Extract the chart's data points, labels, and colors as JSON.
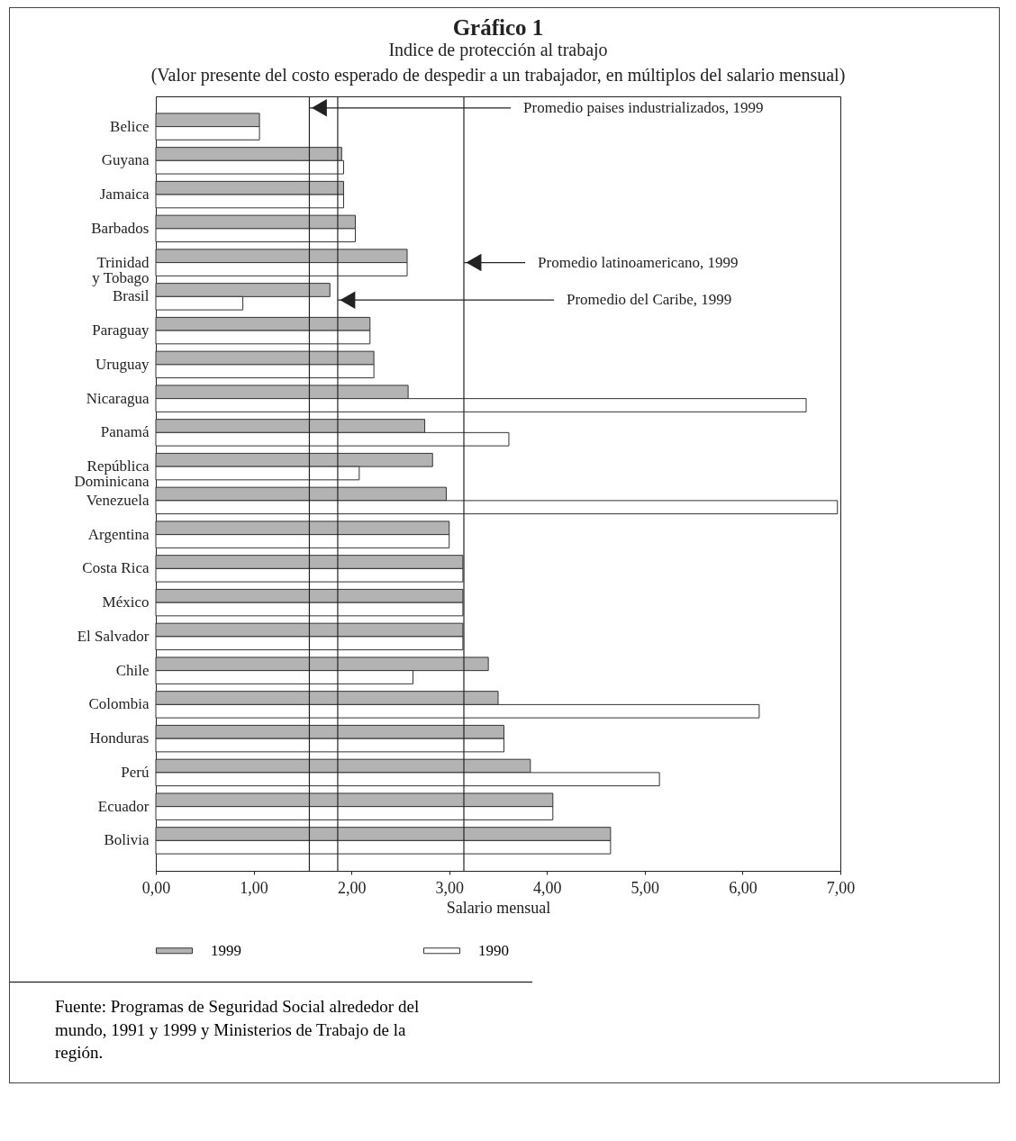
{
  "chart_data": {
    "type": "bar",
    "orientation": "horizontal",
    "title": "Gráfico 1",
    "subtitle": "Indice de protección al trabajo\n(Valor presente del costo esperado de despedir a un trabajador, en múltiplos del salario mensual)",
    "xlabel": "Salario mensual",
    "categories": [
      "Belice",
      "Guyana",
      "Jamaica",
      "Barbados",
      "Trinidad y Tobago",
      "Brasil",
      "Paraguay",
      "Uruguay",
      "Nicaragua",
      "Panamá",
      "República Dominicana",
      "Venezuela",
      "Argentina",
      "Costa Rica",
      "México",
      "El Salvador",
      "Chile",
      "Colombia",
      "Honduras",
      "Perú",
      "Ecuador",
      "Bolivia"
    ],
    "series": [
      {
        "name": "1999",
        "color": "#b3b3b3",
        "values": [
          1.06,
          1.9,
          1.92,
          2.04,
          2.57,
          1.78,
          2.19,
          2.23,
          2.58,
          2.75,
          2.83,
          2.97,
          3.0,
          3.14,
          3.14,
          3.14,
          3.4,
          3.5,
          3.56,
          3.83,
          4.06,
          4.65
        ]
      },
      {
        "name": "1990",
        "color": "#ffffff",
        "values": [
          1.06,
          1.92,
          1.92,
          2.04,
          2.57,
          0.89,
          2.19,
          2.23,
          6.65,
          3.61,
          2.08,
          6.97,
          3.0,
          3.14,
          3.14,
          3.14,
          2.63,
          6.17,
          3.56,
          5.15,
          4.06,
          4.65
        ]
      }
    ],
    "xlim": [
      0,
      7
    ],
    "xticks": [
      {
        "value": 0,
        "label": "0,00"
      },
      {
        "value": 1,
        "label": "1,00"
      },
      {
        "value": 2,
        "label": "2,00"
      },
      {
        "value": 3,
        "label": "3,00"
      },
      {
        "value": 4,
        "label": "4,00"
      },
      {
        "value": 5,
        "label": "5,00"
      },
      {
        "value": 6,
        "label": "6,00"
      },
      {
        "value": 7,
        "label": "7,00"
      }
    ],
    "ref_lines": [
      {
        "axis": "x",
        "value": 1.57,
        "label": "Promedio paises industrializados, 1999"
      },
      {
        "axis": "x",
        "value": 3.15,
        "label": "Promedio latinoamericano, 1999"
      },
      {
        "axis": "x",
        "value": 1.86,
        "label": "Promedio del Caribe, 1999"
      }
    ],
    "legend": "bottom",
    "annotations": [
      "Fuente: Programas de Seguridad Social alrededor del mundo, 1991 y 1999 y Ministerios de Trabajo de la región."
    ]
  }
}
